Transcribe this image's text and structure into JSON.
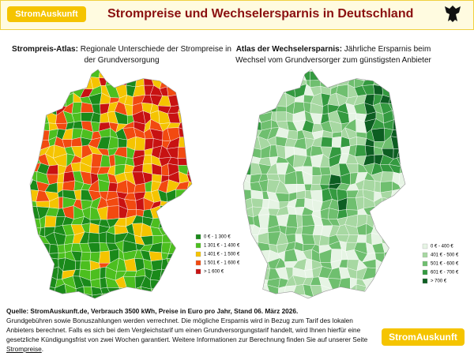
{
  "header": {
    "logo": "StromAuskunft",
    "title": "Strompreise und Wechselersparnis in Deutschland"
  },
  "maps": [
    {
      "title_bold": "Strompreis-Atlas:",
      "title_rest": " Regionale Unterschiede der Strompreise in der Grundversorgung",
      "legend": [
        {
          "label": "0 € - 1 300 €",
          "color": "#1a8a1a"
        },
        {
          "label": "1 301 € - 1 400 €",
          "color": "#4cbf1f"
        },
        {
          "label": "1 401 € - 1 500 €",
          "color": "#f5c400"
        },
        {
          "label": "1 501 € - 1 600 €",
          "color": "#f24a10"
        },
        {
          "label": "> 1 600 €",
          "color": "#c81212"
        }
      ]
    },
    {
      "title_bold": "Atlas der Wechselersparnis:",
      "title_rest": " Jährliche Ersparnis beim Wechsel vom Grundversorger zum günstigsten Anbieter",
      "legend": [
        {
          "label": "0 € - 400 €",
          "color": "#e6f4e4"
        },
        {
          "label": "401 € - 500 €",
          "color": "#a7d8a2"
        },
        {
          "label": "501 € - 600 €",
          "color": "#6fbf6f"
        },
        {
          "label": "601 € - 700 €",
          "color": "#349a40"
        },
        {
          "label": "> 700 €",
          "color": "#0d5e22"
        }
      ]
    }
  ],
  "footer": {
    "source": "Quelle: StromAuskunft.de, Verbrauch 3500 kWh, Preise in Euro pro Jahr, Stand 06. März 2026.",
    "text": "Grundgebühren sowie Bonuszahlungen werden verrechnet. Die mögliche Ersparnis wird in Bezug zum Tarif des lokalen Anbieters berechnet. Falls es sich bei dem Vergleichstarif um einen Grundversorgungstarif handelt, wird Ihnen hierfür eine gesetzliche Kündigungsfrist von zwei Wochen garantiert. Weitere Informationen zur Berechnung finden Sie auf unserer Seite ",
    "link": "Strompreise",
    "end": ".",
    "logo": "StromAuskunft"
  }
}
